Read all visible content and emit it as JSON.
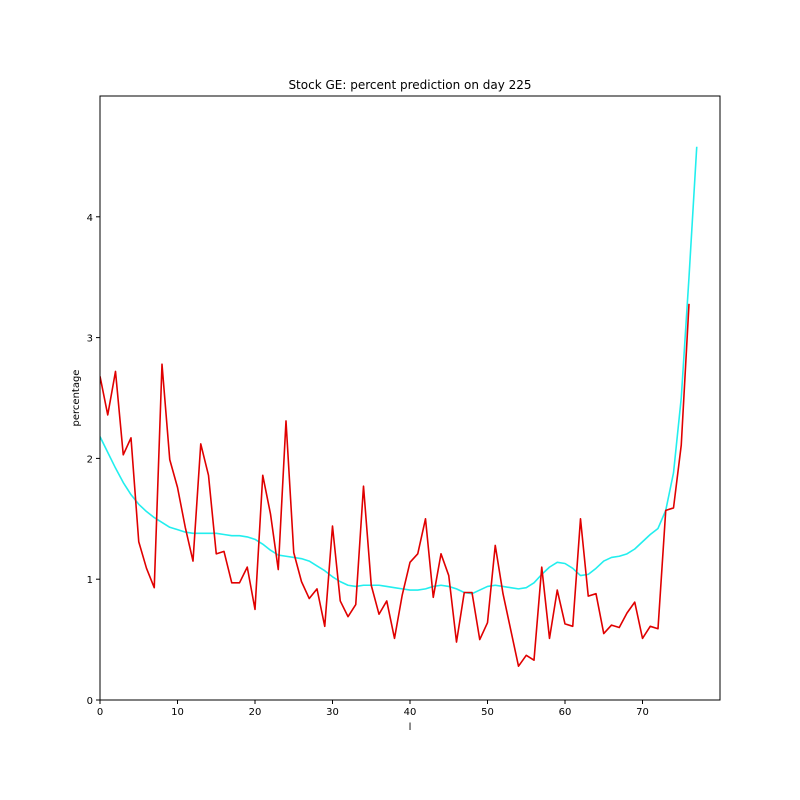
{
  "chart_data": {
    "type": "line",
    "title": "Stock GE: percent prediction on day 225",
    "xlabel": "l",
    "ylabel": "percentage",
    "xlim": [
      0,
      80
    ],
    "ylim": [
      0,
      5
    ],
    "x_ticks": [
      0,
      10,
      20,
      30,
      40,
      50,
      60,
      70
    ],
    "y_ticks": [
      0,
      1,
      2,
      3,
      4
    ],
    "grid": false,
    "legend": "none",
    "series": [
      {
        "color": "#e00000",
        "x": [
          0,
          1,
          2,
          3,
          4,
          5,
          6,
          7,
          8,
          9,
          10,
          11,
          12,
          13,
          14,
          15,
          16,
          17,
          18,
          19,
          20,
          21,
          22,
          23,
          24,
          25,
          26,
          27,
          28,
          29,
          30,
          31,
          32,
          33,
          34,
          35,
          36,
          37,
          38,
          39,
          40,
          41,
          42,
          43,
          44,
          45,
          46,
          47,
          48,
          49,
          50,
          51,
          52,
          53,
          54,
          55,
          56,
          57,
          58,
          59,
          60,
          61,
          62,
          63,
          64,
          65,
          66,
          67,
          68,
          69,
          70,
          71,
          72,
          73,
          74,
          75,
          76
        ],
        "values": [
          2.68,
          2.36,
          2.72,
          2.03,
          2.17,
          1.31,
          1.09,
          0.93,
          2.78,
          1.99,
          1.76,
          1.43,
          1.15,
          2.12,
          1.86,
          1.21,
          1.23,
          0.97,
          0.97,
          1.1,
          0.75,
          1.86,
          1.54,
          1.08,
          2.31,
          1.22,
          0.98,
          0.84,
          0.92,
          0.61,
          1.44,
          0.82,
          0.69,
          0.79,
          1.77,
          0.95,
          0.71,
          0.82,
          0.51,
          0.87,
          1.14,
          1.21,
          1.5,
          0.85,
          1.21,
          1.03,
          0.48,
          0.89,
          0.89,
          0.5,
          0.64,
          1.28,
          0.88,
          0.58,
          0.28,
          0.37,
          0.33,
          1.1,
          0.51,
          0.91,
          0.63,
          0.61,
          1.5,
          0.86,
          0.88,
          0.55,
          0.62,
          0.6,
          0.72,
          0.81,
          0.51,
          0.61,
          0.59,
          1.57,
          1.59,
          2.11,
          3.28
        ]
      },
      {
        "color": "#22eeee",
        "x": [
          0,
          1,
          2,
          3,
          4,
          5,
          6,
          7,
          8,
          9,
          10,
          11,
          12,
          13,
          14,
          15,
          16,
          17,
          18,
          19,
          20,
          21,
          22,
          23,
          24,
          25,
          26,
          27,
          28,
          29,
          30,
          31,
          32,
          33,
          34,
          35,
          36,
          37,
          38,
          39,
          40,
          41,
          42,
          43,
          44,
          45,
          46,
          47,
          48,
          49,
          50,
          51,
          52,
          53,
          54,
          55,
          56,
          57,
          58,
          59,
          60,
          61,
          62,
          63,
          64,
          65,
          66,
          67,
          68,
          69,
          70,
          71,
          72,
          73,
          74,
          75,
          76,
          77
        ],
        "values": [
          2.18,
          2.05,
          1.92,
          1.8,
          1.7,
          1.62,
          1.56,
          1.51,
          1.47,
          1.43,
          1.41,
          1.39,
          1.38,
          1.38,
          1.38,
          1.38,
          1.37,
          1.36,
          1.36,
          1.35,
          1.33,
          1.29,
          1.24,
          1.2,
          1.19,
          1.18,
          1.17,
          1.15,
          1.11,
          1.07,
          1.02,
          0.98,
          0.95,
          0.94,
          0.95,
          0.95,
          0.95,
          0.94,
          0.93,
          0.92,
          0.91,
          0.91,
          0.92,
          0.94,
          0.95,
          0.94,
          0.92,
          0.89,
          0.88,
          0.91,
          0.94,
          0.95,
          0.94,
          0.93,
          0.92,
          0.93,
          0.97,
          1.04,
          1.1,
          1.14,
          1.13,
          1.09,
          1.03,
          1.04,
          1.09,
          1.15,
          1.18,
          1.19,
          1.21,
          1.25,
          1.31,
          1.37,
          1.42,
          1.57,
          1.88,
          2.5,
          3.5,
          4.58
        ]
      }
    ]
  }
}
